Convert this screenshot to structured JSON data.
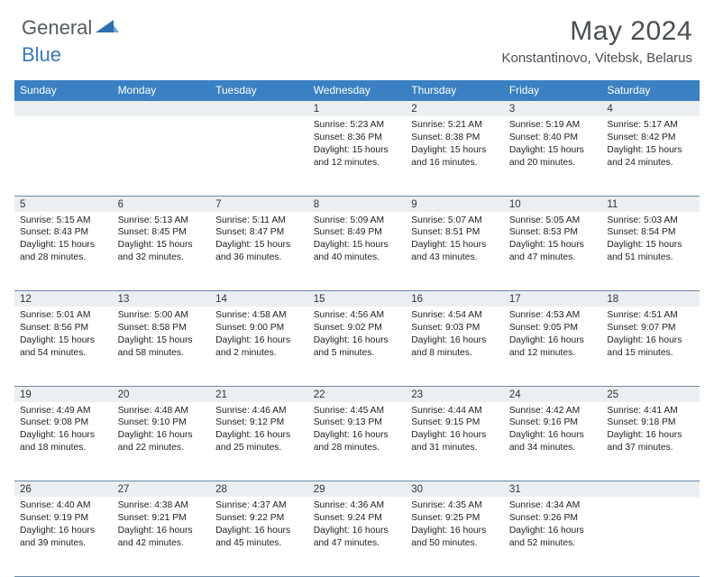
{
  "logo": {
    "text1": "General",
    "text2": "Blue"
  },
  "title": "May 2024",
  "location": "Konstantinovo, Vitebsk, Belarus",
  "colors": {
    "header_bg": "#3a80c2",
    "header_text": "#ffffff",
    "daynum_bg": "#eceff1",
    "border": "#6b88a6",
    "logo_gray": "#555b60",
    "logo_blue": "#3a7ab8",
    "title_color": "#4a4f54"
  },
  "day_headers": [
    "Sunday",
    "Monday",
    "Tuesday",
    "Wednesday",
    "Thursday",
    "Friday",
    "Saturday"
  ],
  "weeks": [
    [
      null,
      null,
      null,
      {
        "n": "1",
        "sr": "5:23 AM",
        "ss": "8:36 PM",
        "dl": "15 hours and 12 minutes."
      },
      {
        "n": "2",
        "sr": "5:21 AM",
        "ss": "8:38 PM",
        "dl": "15 hours and 16 minutes."
      },
      {
        "n": "3",
        "sr": "5:19 AM",
        "ss": "8:40 PM",
        "dl": "15 hours and 20 minutes."
      },
      {
        "n": "4",
        "sr": "5:17 AM",
        "ss": "8:42 PM",
        "dl": "15 hours and 24 minutes."
      }
    ],
    [
      {
        "n": "5",
        "sr": "5:15 AM",
        "ss": "8:43 PM",
        "dl": "15 hours and 28 minutes."
      },
      {
        "n": "6",
        "sr": "5:13 AM",
        "ss": "8:45 PM",
        "dl": "15 hours and 32 minutes."
      },
      {
        "n": "7",
        "sr": "5:11 AM",
        "ss": "8:47 PM",
        "dl": "15 hours and 36 minutes."
      },
      {
        "n": "8",
        "sr": "5:09 AM",
        "ss": "8:49 PM",
        "dl": "15 hours and 40 minutes."
      },
      {
        "n": "9",
        "sr": "5:07 AM",
        "ss": "8:51 PM",
        "dl": "15 hours and 43 minutes."
      },
      {
        "n": "10",
        "sr": "5:05 AM",
        "ss": "8:53 PM",
        "dl": "15 hours and 47 minutes."
      },
      {
        "n": "11",
        "sr": "5:03 AM",
        "ss": "8:54 PM",
        "dl": "15 hours and 51 minutes."
      }
    ],
    [
      {
        "n": "12",
        "sr": "5:01 AM",
        "ss": "8:56 PM",
        "dl": "15 hours and 54 minutes."
      },
      {
        "n": "13",
        "sr": "5:00 AM",
        "ss": "8:58 PM",
        "dl": "15 hours and 58 minutes."
      },
      {
        "n": "14",
        "sr": "4:58 AM",
        "ss": "9:00 PM",
        "dl": "16 hours and 2 minutes."
      },
      {
        "n": "15",
        "sr": "4:56 AM",
        "ss": "9:02 PM",
        "dl": "16 hours and 5 minutes."
      },
      {
        "n": "16",
        "sr": "4:54 AM",
        "ss": "9:03 PM",
        "dl": "16 hours and 8 minutes."
      },
      {
        "n": "17",
        "sr": "4:53 AM",
        "ss": "9:05 PM",
        "dl": "16 hours and 12 minutes."
      },
      {
        "n": "18",
        "sr": "4:51 AM",
        "ss": "9:07 PM",
        "dl": "16 hours and 15 minutes."
      }
    ],
    [
      {
        "n": "19",
        "sr": "4:49 AM",
        "ss": "9:08 PM",
        "dl": "16 hours and 18 minutes."
      },
      {
        "n": "20",
        "sr": "4:48 AM",
        "ss": "9:10 PM",
        "dl": "16 hours and 22 minutes."
      },
      {
        "n": "21",
        "sr": "4:46 AM",
        "ss": "9:12 PM",
        "dl": "16 hours and 25 minutes."
      },
      {
        "n": "22",
        "sr": "4:45 AM",
        "ss": "9:13 PM",
        "dl": "16 hours and 28 minutes."
      },
      {
        "n": "23",
        "sr": "4:44 AM",
        "ss": "9:15 PM",
        "dl": "16 hours and 31 minutes."
      },
      {
        "n": "24",
        "sr": "4:42 AM",
        "ss": "9:16 PM",
        "dl": "16 hours and 34 minutes."
      },
      {
        "n": "25",
        "sr": "4:41 AM",
        "ss": "9:18 PM",
        "dl": "16 hours and 37 minutes."
      }
    ],
    [
      {
        "n": "26",
        "sr": "4:40 AM",
        "ss": "9:19 PM",
        "dl": "16 hours and 39 minutes."
      },
      {
        "n": "27",
        "sr": "4:38 AM",
        "ss": "9:21 PM",
        "dl": "16 hours and 42 minutes."
      },
      {
        "n": "28",
        "sr": "4:37 AM",
        "ss": "9:22 PM",
        "dl": "16 hours and 45 minutes."
      },
      {
        "n": "29",
        "sr": "4:36 AM",
        "ss": "9:24 PM",
        "dl": "16 hours and 47 minutes."
      },
      {
        "n": "30",
        "sr": "4:35 AM",
        "ss": "9:25 PM",
        "dl": "16 hours and 50 minutes."
      },
      {
        "n": "31",
        "sr": "4:34 AM",
        "ss": "9:26 PM",
        "dl": "16 hours and 52 minutes."
      },
      null
    ]
  ],
  "labels": {
    "sunrise": "Sunrise: ",
    "sunset": "Sunset: ",
    "daylight": "Daylight: "
  }
}
